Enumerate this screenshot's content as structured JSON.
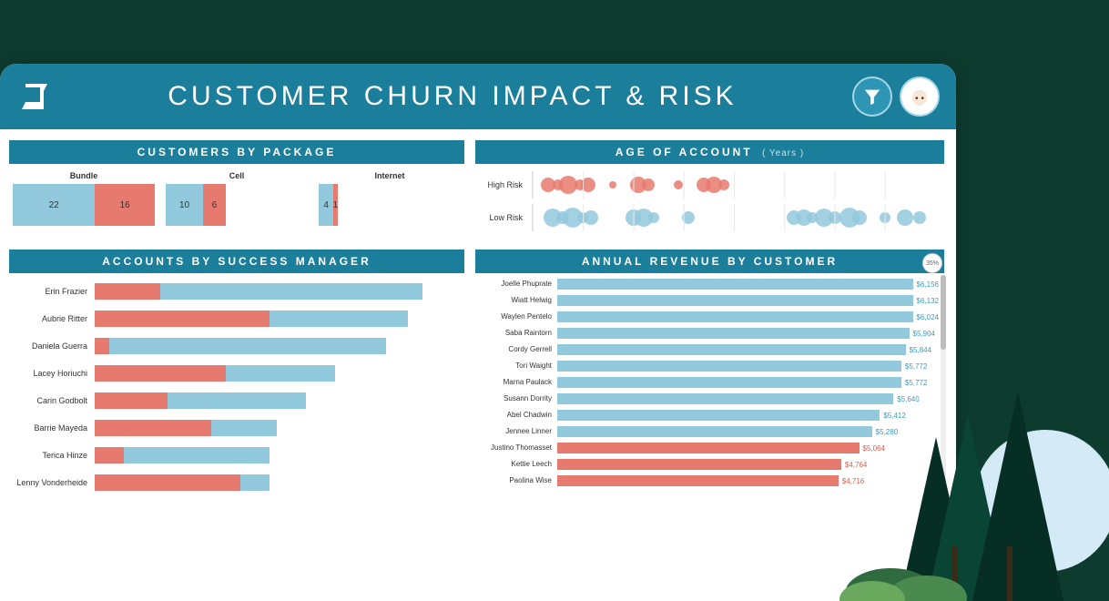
{
  "colors": {
    "header_bg": "#1b7e9b",
    "low_risk": "#93c9dd",
    "high_risk": "#e77a6f",
    "panel_bg": "#ffffff",
    "text": "#333333"
  },
  "header": {
    "title": "CUSTOMER CHURN IMPACT & RISK"
  },
  "customers_by_package": {
    "title": "CUSTOMERS BY PACKAGE",
    "type": "stacked-bar",
    "categories": [
      "Bundle",
      "Cell",
      "Internet"
    ],
    "segments": [
      {
        "low": 22,
        "high": 16
      },
      {
        "low": 10,
        "high": 6
      },
      {
        "low": 4,
        "high": 1
      }
    ],
    "max_total": 38,
    "low_color": "#93c9dd",
    "high_color": "#e77a6f",
    "label_fontsize": 9,
    "value_fontsize": 10
  },
  "age_of_account": {
    "title": "AGE OF ACCOUNT",
    "subtitle": "( Years )",
    "type": "bubble-strip",
    "x_range": [
      0,
      8
    ],
    "rows": [
      {
        "label": "High Risk",
        "color": "#e77a6f",
        "points": [
          {
            "x": 0.3,
            "r": 8
          },
          {
            "x": 0.5,
            "r": 6
          },
          {
            "x": 0.7,
            "r": 10
          },
          {
            "x": 0.95,
            "r": 6
          },
          {
            "x": 1.1,
            "r": 8
          },
          {
            "x": 1.6,
            "r": 4
          },
          {
            "x": 2.1,
            "r": 9
          },
          {
            "x": 2.3,
            "r": 7
          },
          {
            "x": 2.9,
            "r": 5
          },
          {
            "x": 3.4,
            "r": 8
          },
          {
            "x": 3.6,
            "r": 9
          },
          {
            "x": 3.8,
            "r": 6
          }
        ]
      },
      {
        "label": "Low Risk",
        "color": "#93c9dd",
        "points": [
          {
            "x": 0.4,
            "r": 10
          },
          {
            "x": 0.6,
            "r": 7
          },
          {
            "x": 0.8,
            "r": 11
          },
          {
            "x": 1.0,
            "r": 6
          },
          {
            "x": 1.15,
            "r": 8
          },
          {
            "x": 2.0,
            "r": 9
          },
          {
            "x": 2.2,
            "r": 10
          },
          {
            "x": 2.4,
            "r": 6
          },
          {
            "x": 3.1,
            "r": 7
          },
          {
            "x": 5.2,
            "r": 8
          },
          {
            "x": 5.4,
            "r": 9
          },
          {
            "x": 5.55,
            "r": 6
          },
          {
            "x": 5.8,
            "r": 10
          },
          {
            "x": 6.0,
            "r": 7
          },
          {
            "x": 6.3,
            "r": 11
          },
          {
            "x": 6.5,
            "r": 8
          },
          {
            "x": 7.0,
            "r": 6
          },
          {
            "x": 7.4,
            "r": 9
          },
          {
            "x": 7.7,
            "r": 7
          }
        ]
      }
    ]
  },
  "accounts_by_manager": {
    "title": "ACCOUNTS BY SUCCESS MANAGER",
    "type": "stacked-hbar",
    "x_max": 100,
    "low_color": "#93c9dd",
    "high_color": "#e77a6f",
    "rows": [
      {
        "label": "Erin Frazier",
        "high": 18,
        "low": 72
      },
      {
        "label": "Aubrie Ritter",
        "high": 48,
        "low": 38
      },
      {
        "label": "Daniela Guerra",
        "high": 4,
        "low": 76
      },
      {
        "label": "Lacey Horiuchi",
        "high": 36,
        "low": 30
      },
      {
        "label": "Carin Godbolt",
        "high": 20,
        "low": 38
      },
      {
        "label": "Barrie Mayeda",
        "high": 32,
        "low": 18
      },
      {
        "label": "Terica Hinze",
        "high": 8,
        "low": 40
      },
      {
        "label": "Lenny Vonderheide",
        "high": 40,
        "low": 8
      }
    ]
  },
  "annual_revenue": {
    "title": "ANNUAL REVENUE BY CUSTOMER",
    "type": "hbar",
    "gauge_pct": "35%",
    "x_max": 6400,
    "normal_color": "#93c9dd",
    "risk_color": "#e77a6f",
    "value_color_normal": "#3c9cc0",
    "value_color_risk": "#e05a4a",
    "rows": [
      {
        "label": "Joelle Phuprate",
        "value": 6156,
        "display": "$6,156",
        "risk": false
      },
      {
        "label": "Wiatt Helwig",
        "value": 6132,
        "display": "$6,132",
        "risk": false
      },
      {
        "label": "Waylen Pentelo",
        "value": 6024,
        "display": "$6,024",
        "risk": false
      },
      {
        "label": "Saba Raintorn",
        "value": 5904,
        "display": "$5,904",
        "risk": false
      },
      {
        "label": "Cordy Gerrell",
        "value": 5844,
        "display": "$5,844",
        "risk": false
      },
      {
        "label": "Tori Waight",
        "value": 5772,
        "display": "$5,772",
        "risk": false
      },
      {
        "label": "Marna Paulack",
        "value": 5772,
        "display": "$5,772",
        "risk": false
      },
      {
        "label": "Susann Dorrity",
        "value": 5640,
        "display": "$5,640",
        "risk": false
      },
      {
        "label": "Abel Chadwin",
        "value": 5412,
        "display": "$5,412",
        "risk": false
      },
      {
        "label": "Jennee Linner",
        "value": 5280,
        "display": "$5,280",
        "risk": false
      },
      {
        "label": "Justino Thomasset",
        "value": 5064,
        "display": "$5,064",
        "risk": true
      },
      {
        "label": "Kettie Leech",
        "value": 4764,
        "display": "$4,764",
        "risk": true
      },
      {
        "label": "Paolina Wise",
        "value": 4716,
        "display": "$4,716",
        "risk": true
      }
    ]
  }
}
